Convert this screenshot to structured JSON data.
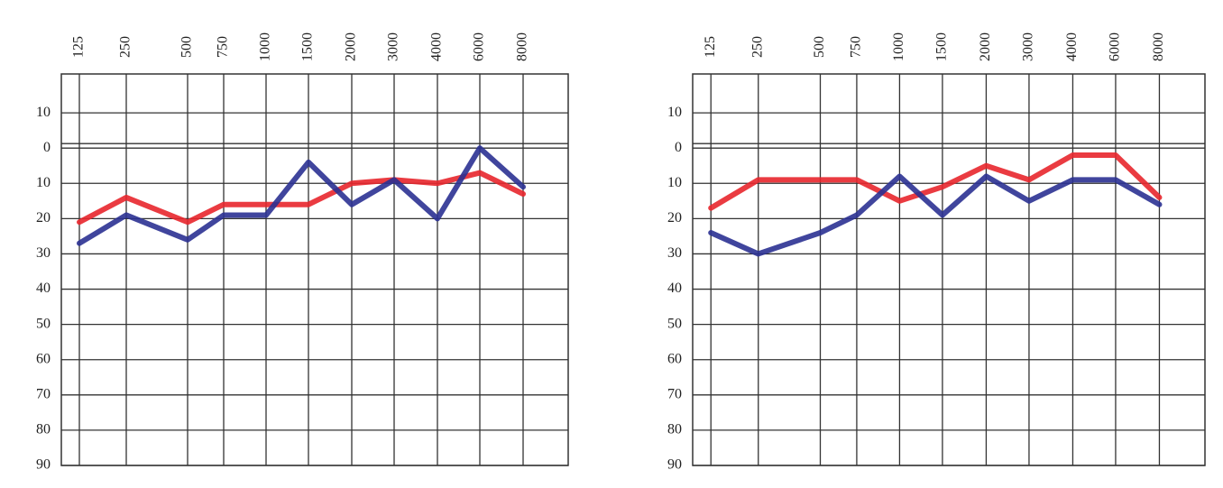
{
  "chart_data": [
    {
      "type": "line",
      "categories": [
        "125",
        "250",
        "500",
        "750",
        "1000",
        "1500",
        "2000",
        "3000",
        "4000",
        "6000",
        "8000"
      ],
      "series": [
        {
          "color": "#e8262c",
          "values": [
            21,
            14,
            21,
            16,
            16,
            16,
            10,
            9,
            10,
            7,
            13
          ]
        },
        {
          "color": "#2b3192",
          "values": [
            27,
            19,
            26,
            19,
            19,
            4,
            16,
            9,
            20,
            0,
            11
          ]
        }
      ],
      "ylim": [
        -20,
        90
      ],
      "yticks": [
        {
          "value": -10,
          "label": "10"
        },
        0,
        {
          "value": 10,
          "label": "10"
        },
        20,
        30,
        40,
        50,
        60,
        70,
        80,
        90
      ],
      "y_inverted": true,
      "grid": true
    },
    {
      "type": "line",
      "categories": [
        "125",
        "250",
        "500",
        "750",
        "1000",
        "1500",
        "2000",
        "3000",
        "4000",
        "6000",
        "8000"
      ],
      "series": [
        {
          "color": "#e8262c",
          "values": [
            17,
            9,
            9,
            9,
            15,
            11,
            5,
            9,
            2,
            2,
            14
          ]
        },
        {
          "color": "#2b3192",
          "values": [
            24,
            30,
            24,
            19,
            8,
            19,
            8,
            15,
            9,
            9,
            16
          ]
        }
      ],
      "ylim": [
        -20,
        90
      ],
      "yticks": [
        {
          "value": -10,
          "label": "10"
        },
        0,
        {
          "value": 10,
          "label": "10"
        },
        20,
        30,
        40,
        50,
        60,
        70,
        80,
        90
      ],
      "y_inverted": true,
      "grid": true
    }
  ]
}
